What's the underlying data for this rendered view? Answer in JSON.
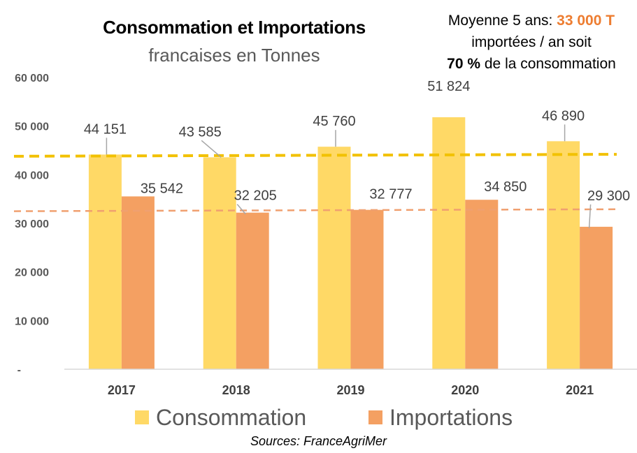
{
  "colors": {
    "consommation": "#FFD966",
    "importations": "#F4A062",
    "trend_consommation": "#F2C100",
    "trend_importations": "#F0A070",
    "accent": "#ED7D31"
  },
  "note": {
    "line1_prefix": "Moyenne 5 ans: ",
    "line1_value": "33 000 T",
    "line2": "importées / an soit",
    "line3_value": "70 %",
    "line3_suffix": " de la consommation"
  },
  "source": "Sources: FranceAgriMer",
  "chart_data": {
    "type": "bar",
    "title": "Consommation et Importations",
    "subtitle": "francaises en Tonnes",
    "categories": [
      "2017",
      "2018",
      "2019",
      "2020",
      "2021"
    ],
    "series": [
      {
        "name": "Consommation",
        "values": [
          44151,
          43585,
          45760,
          51824,
          46890
        ],
        "labels": [
          "44 151",
          "43 585",
          "45 760",
          "51 824",
          "46 890"
        ]
      },
      {
        "name": "Importations",
        "values": [
          35542,
          32205,
          32777,
          34850,
          29300
        ],
        "labels": [
          "35 542",
          "32 205",
          "32 777",
          "34 850",
          "29 300"
        ]
      }
    ],
    "trendlines": [
      {
        "series": "Consommation",
        "style": "dashed",
        "start": 43800,
        "end": 44200
      },
      {
        "series": "Importations",
        "style": "dashed",
        "start": 32500,
        "end": 32900
      }
    ],
    "yticks": [
      "-",
      "10 000",
      "20 000",
      "30 000",
      "40 000",
      "50 000",
      "60 000"
    ],
    "ylim": [
      0,
      60000
    ],
    "grid": false,
    "legend": "bottom"
  }
}
